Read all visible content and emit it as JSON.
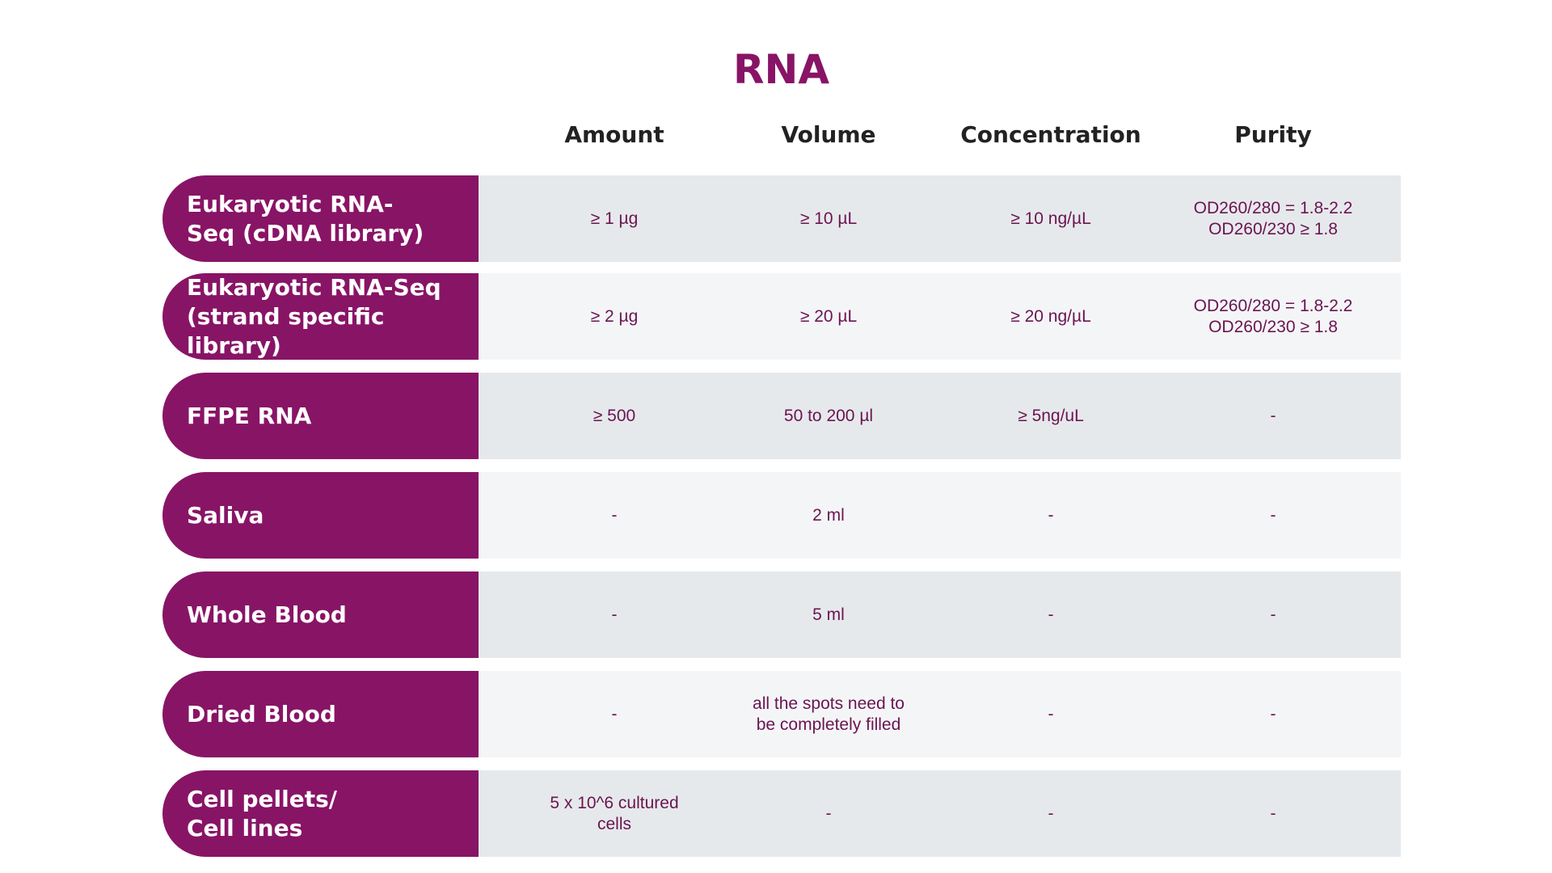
{
  "title": "RNA",
  "columns": [
    "Amount",
    "Volume",
    "Concentration",
    "Purity"
  ],
  "rows": [
    {
      "label": "Eukaryotic RNA-\nSeq (cDNA library)",
      "amount": "≥ 1 µg",
      "volume": "≥ 10 µL",
      "concentration": "≥ 10 ng/µL",
      "purity": "OD260/280 = 1.8-2.2\nOD260/230 ≥ 1.8"
    },
    {
      "label": "Eukaryotic RNA-Seq\n(strand specific library)",
      "amount": "≥ 2 µg",
      "volume": "≥ 20 µL",
      "concentration": "≥ 20 ng/µL",
      "purity": "OD260/280 = 1.8-2.2\nOD260/230 ≥ 1.8"
    },
    {
      "label": "FFPE RNA",
      "amount": "≥ 500",
      "volume": "50 to 200 µl",
      "concentration": "≥ 5ng/uL",
      "purity": "-"
    },
    {
      "label": "Saliva",
      "amount": "-",
      "volume": "2 ml",
      "concentration": "-",
      "purity": "-"
    },
    {
      "label": "Whole Blood",
      "amount": "-",
      "volume": "5 ml",
      "concentration": "-",
      "purity": "-"
    },
    {
      "label": "Dried Blood",
      "amount": "-",
      "volume": "all the spots need to\nbe completely filled",
      "concentration": "-",
      "purity": "-"
    },
    {
      "label": "Cell pellets/\nCell lines",
      "amount": "5 x 10^6 cultured\ncells",
      "volume": "-",
      "concentration": "-",
      "purity": "-"
    }
  ],
  "colors": {
    "accent": "#881466",
    "row_dark": "#e6e9ec",
    "row_light": "#f4f5f7",
    "header_text": "#222222",
    "cell_text": "#6b1450"
  }
}
